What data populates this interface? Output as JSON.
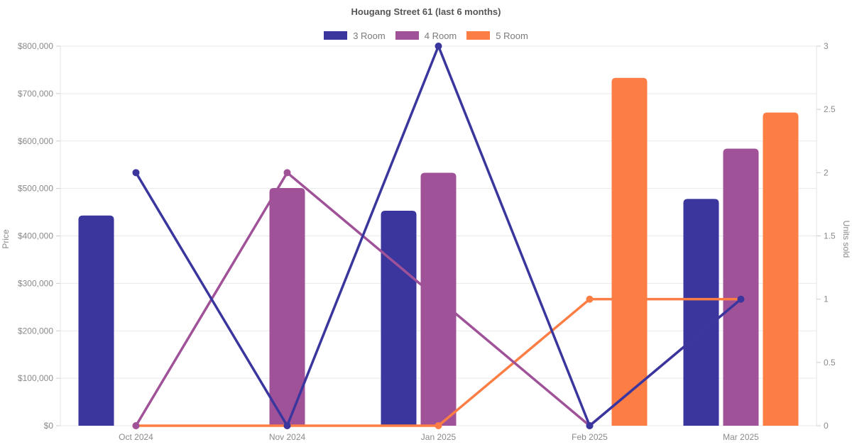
{
  "page": {
    "title": "Hougang Street 61 (last 6 months)"
  },
  "chart_data": {
    "type": "bar",
    "subtype": "combo-bar-line-dual-axis",
    "title": "Hougang Street 61 (last 6 months)",
    "categories": [
      "Oct 2024",
      "Nov 2024",
      "Jan 2025",
      "Feb 2025",
      "Mar 2025"
    ],
    "series": [
      {
        "name": "3 Room",
        "color": "#3a369e",
        "bar_prices": [
          443000,
          null,
          453000,
          null,
          478000
        ],
        "line_units_sold": [
          2,
          0,
          3,
          0,
          1
        ]
      },
      {
        "name": "4 Room",
        "color": "#a05298",
        "bar_prices": [
          null,
          501000,
          533000,
          null,
          584000
        ],
        "line_units_sold": [
          0,
          2,
          1,
          0,
          1
        ]
      },
      {
        "name": "5 Room",
        "color": "#fd7e44",
        "bar_prices": [
          null,
          null,
          null,
          733000,
          660000
        ],
        "line_units_sold": [
          0,
          0,
          0,
          1,
          1
        ]
      }
    ],
    "y_left": {
      "label": "Price",
      "min": 0,
      "max": 800000,
      "step": 100000,
      "tick_labels": [
        "$0",
        "$100,000",
        "$200,000",
        "$300,000",
        "$400,000",
        "$500,000",
        "$600,000",
        "$700,000",
        "$800,000"
      ]
    },
    "y_right": {
      "label": "Units sold",
      "min": 0,
      "max": 3,
      "step": 0.5,
      "tick_labels": [
        "0",
        "0.5",
        "1",
        "1.5",
        "2",
        "2.5",
        "3"
      ]
    },
    "legend_position": "top",
    "grid": true,
    "colors": {
      "grid_line": "#e9e9e9",
      "axis_border": "#e3e3e3",
      "tick_mark": "#cccccc",
      "tick_text": "#8a8a8a",
      "title_text": "#565656",
      "legend_text": "#7b7b7b",
      "background": "#ffffff"
    }
  }
}
